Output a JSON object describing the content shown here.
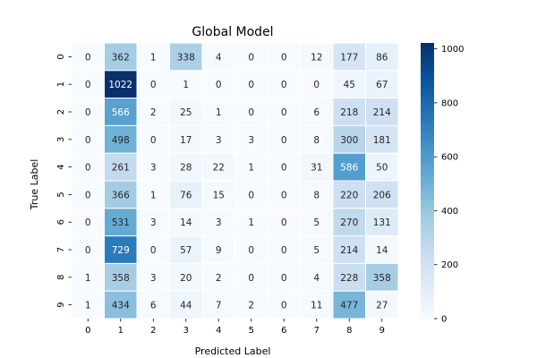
{
  "chart_data": {
    "type": "heatmap",
    "title": "Global Model",
    "xlabel": "Predicted Label",
    "ylabel": "True Label",
    "x_categories": [
      "0",
      "1",
      "2",
      "3",
      "4",
      "5",
      "6",
      "7",
      "8",
      "9"
    ],
    "y_categories": [
      "0",
      "1",
      "2",
      "3",
      "4",
      "5",
      "6",
      "7",
      "8",
      "9"
    ],
    "values": [
      [
        0,
        362,
        1,
        338,
        4,
        0,
        0,
        12,
        177,
        86
      ],
      [
        0,
        1022,
        0,
        1,
        0,
        0,
        0,
        0,
        45,
        67
      ],
      [
        0,
        566,
        2,
        25,
        1,
        0,
        0,
        6,
        218,
        214
      ],
      [
        0,
        498,
        0,
        17,
        3,
        3,
        0,
        8,
        300,
        181
      ],
      [
        0,
        261,
        3,
        28,
        22,
        1,
        0,
        31,
        586,
        50
      ],
      [
        0,
        366,
        1,
        76,
        15,
        0,
        0,
        8,
        220,
        206
      ],
      [
        0,
        531,
        3,
        14,
        3,
        1,
        0,
        5,
        270,
        131
      ],
      [
        0,
        729,
        0,
        57,
        9,
        0,
        0,
        5,
        214,
        14
      ],
      [
        1,
        358,
        3,
        20,
        2,
        0,
        0,
        4,
        228,
        358
      ],
      [
        1,
        434,
        6,
        44,
        7,
        2,
        0,
        11,
        477,
        27
      ]
    ],
    "colormap": "Blues",
    "color_range": [
      0,
      1022
    ],
    "colorbar_ticks": [
      0,
      200,
      400,
      600,
      800,
      1000
    ],
    "annotated": true,
    "cell_gridlines": true
  }
}
